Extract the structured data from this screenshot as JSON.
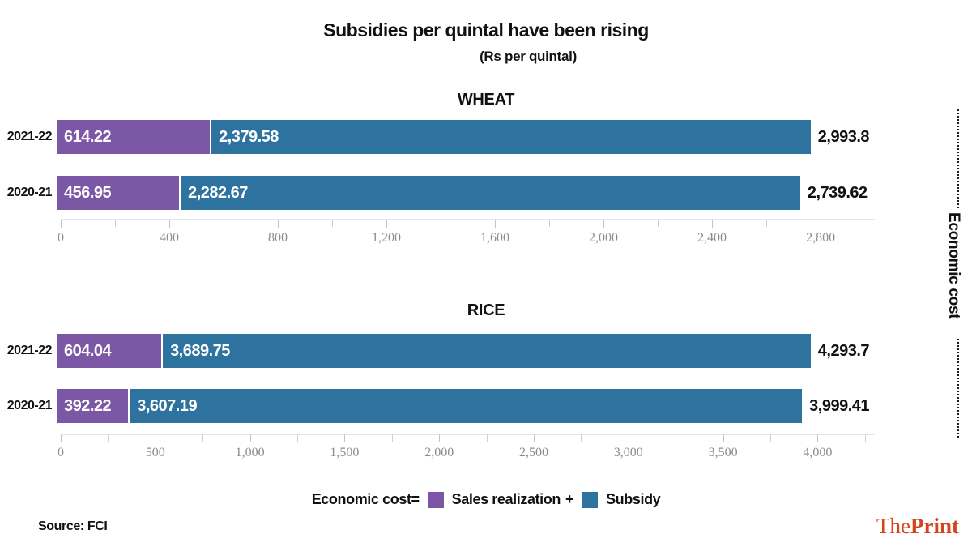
{
  "header": {
    "title": "Subsidies per quintal have been rising",
    "subtitle": "(Rs per quintal)"
  },
  "annotation": {
    "economic_cost": "Economic cost"
  },
  "legend": {
    "economic_cost": "Economic cost",
    "equals": "=",
    "sales_realization": "Sales realization",
    "plus": "+",
    "subsidy": "Subsidy"
  },
  "footer": {
    "source": "Source: FCI",
    "brand_the": "The",
    "brand_print": "Print"
  },
  "colors": {
    "sales_realization": "#7b57a5",
    "subsidy": "#2e739f",
    "brand": "#d2451c"
  },
  "chart_data": [
    {
      "type": "bar",
      "stacked": true,
      "orientation": "horizontal",
      "title": "WHEAT",
      "unit": "Rs per quintal",
      "categories": [
        "2021-22",
        "2020-21"
      ],
      "series": [
        {
          "name": "Sales realization",
          "color": "#7b57a5",
          "values": [
            614.22,
            456.95
          ]
        },
        {
          "name": "Subsidy",
          "color": "#2e739f",
          "values": [
            2379.58,
            2282.67
          ]
        }
      ],
      "value_labels": [
        [
          "614.22",
          "2,379.58"
        ],
        [
          "456.95",
          "2,282.67"
        ]
      ],
      "totals": [
        2993.8,
        2739.62
      ],
      "total_labels": [
        "2,993.8",
        "2,739.62"
      ],
      "axis": {
        "min": 0,
        "max": 2993.8,
        "major_step": 400,
        "minor_step": 200,
        "tick_labels": [
          "0",
          "400",
          "800",
          "1,200",
          "1,600",
          "2,000",
          "2,400",
          "2,800"
        ]
      }
    },
    {
      "type": "bar",
      "stacked": true,
      "orientation": "horizontal",
      "title": "RICE",
      "unit": "Rs per quintal",
      "categories": [
        "2021-22",
        "2020-21"
      ],
      "series": [
        {
          "name": "Sales realization",
          "color": "#7b57a5",
          "values": [
            604.04,
            392.22
          ]
        },
        {
          "name": "Subsidy",
          "color": "#2e739f",
          "values": [
            3689.75,
            3607.19
          ]
        }
      ],
      "value_labels": [
        [
          "604.04",
          "3,689.75"
        ],
        [
          "392.22",
          "3,607.19"
        ]
      ],
      "totals": [
        4293.7,
        3999.41
      ],
      "total_labels": [
        "4,293.7",
        "3,999.41"
      ],
      "axis": {
        "min": 0,
        "max": 4293.7,
        "major_step": 500,
        "minor_step": 250,
        "tick_labels": [
          "0",
          "500",
          "1,000",
          "1,500",
          "2,000",
          "2,500",
          "3,000",
          "3,500",
          "4,000"
        ]
      }
    }
  ]
}
